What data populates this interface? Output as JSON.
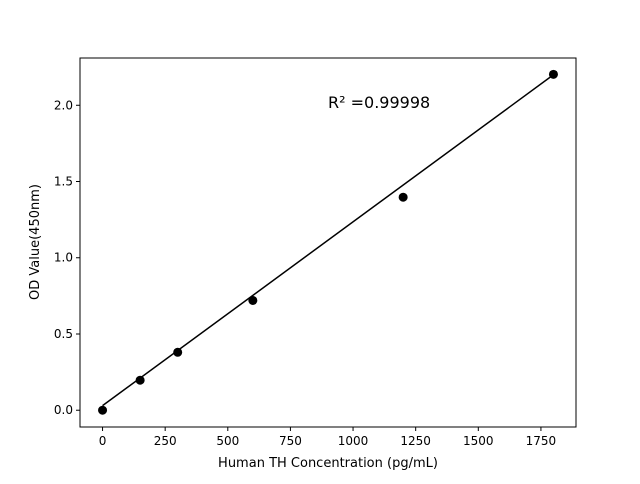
{
  "chart_data": {
    "type": "scatter",
    "title": "",
    "xlabel": "Human TH Concentration (pg/mL)",
    "ylabel": "OD Value(450nm)",
    "xlim": [
      -90,
      1890
    ],
    "ylim": [
      -0.11,
      2.31
    ],
    "x_ticks": [
      0,
      250,
      500,
      750,
      1000,
      1250,
      1500,
      1750
    ],
    "x_tick_labels": [
      "0",
      "250",
      "500",
      "750",
      "1000",
      "1250",
      "1500",
      "1750"
    ],
    "y_ticks": [
      0.0,
      0.5,
      1.0,
      1.5,
      2.0
    ],
    "y_tick_labels": [
      "0.0",
      "0.5",
      "1.0",
      "1.5",
      "2.0"
    ],
    "grid": false,
    "series": [
      {
        "x": [
          0,
          150,
          300,
          600,
          1200,
          1800
        ],
        "y": [
          0.0,
          0.197,
          0.38,
          0.72,
          1.397,
          2.203
        ],
        "color": "#000000",
        "marker": "circle"
      }
    ],
    "fit_line": {
      "x": [
        0,
        1800
      ],
      "y": [
        0.03,
        2.2
      ],
      "color": "#000000"
    },
    "annotation": "R² =0.99998"
  }
}
